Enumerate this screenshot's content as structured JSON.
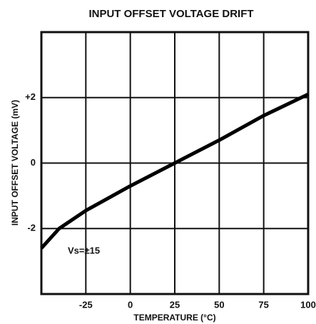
{
  "chart_data": {
    "type": "line",
    "title": "INPUT OFFSET VOLTAGE DRIFT",
    "x_label": "TEMPERATURE (°C)",
    "y_label": "INPUT OFFSET VOLTAGE (mV)",
    "annotation": "Vs=±15",
    "x": [
      -50,
      -40,
      -25,
      0,
      25,
      50,
      75,
      100
    ],
    "values": [
      -2.6,
      -2.0,
      -1.45,
      -0.7,
      0,
      0.7,
      1.45,
      2.1
    ],
    "color": "#000000",
    "xlim": [
      -50,
      100
    ],
    "xticks": [
      -25,
      0,
      25,
      50,
      75,
      100
    ],
    "ylim": [
      -4,
      4
    ],
    "yticks": [
      -2,
      0,
      {
        "value": 2,
        "label": "+2"
      }
    ],
    "grid": true
  }
}
